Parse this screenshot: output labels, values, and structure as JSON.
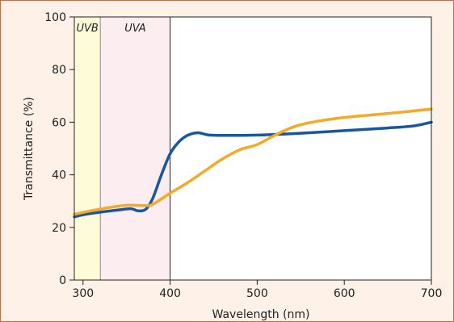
{
  "chart_data": {
    "type": "line",
    "title": "",
    "xlabel": "Wavelength (nm)",
    "ylabel": "Transmittance (%)",
    "xlim": [
      290,
      700
    ],
    "ylim": [
      0,
      100
    ],
    "x_ticks": [
      300,
      400,
      500,
      600,
      700
    ],
    "y_ticks": [
      0,
      20,
      40,
      60,
      80,
      100
    ],
    "grid": false,
    "legend": "none",
    "bands": [
      {
        "label": "UVB",
        "from": 290,
        "to": 320,
        "color": "#fdfbd8"
      },
      {
        "label": "UVA",
        "from": 320,
        "to": 400,
        "color": "#fcedf0"
      }
    ],
    "series": [
      {
        "color": "#1a56a0",
        "points": [
          [
            290,
            24
          ],
          [
            300,
            24.8
          ],
          [
            320,
            25.8
          ],
          [
            340,
            26.6
          ],
          [
            355,
            27.1
          ],
          [
            363,
            26.3
          ],
          [
            372,
            26.9
          ],
          [
            380,
            31
          ],
          [
            390,
            40
          ],
          [
            400,
            48
          ],
          [
            410,
            52.5
          ],
          [
            420,
            55
          ],
          [
            432,
            56
          ],
          [
            445,
            55.1
          ],
          [
            470,
            55
          ],
          [
            500,
            55.1
          ],
          [
            550,
            55.8
          ],
          [
            600,
            56.8
          ],
          [
            650,
            57.8
          ],
          [
            680,
            58.6
          ],
          [
            700,
            60
          ]
        ]
      },
      {
        "color": "#f2aa28",
        "points": [
          [
            290,
            25
          ],
          [
            320,
            27
          ],
          [
            350,
            28.4
          ],
          [
            370,
            28.3
          ],
          [
            380,
            28.8
          ],
          [
            400,
            33
          ],
          [
            420,
            37
          ],
          [
            440,
            41.5
          ],
          [
            460,
            46
          ],
          [
            480,
            49.5
          ],
          [
            500,
            51.5
          ],
          [
            520,
            55
          ],
          [
            540,
            58
          ],
          [
            560,
            59.8
          ],
          [
            600,
            61.8
          ],
          [
            650,
            63.3
          ],
          [
            700,
            65
          ]
        ]
      }
    ]
  }
}
